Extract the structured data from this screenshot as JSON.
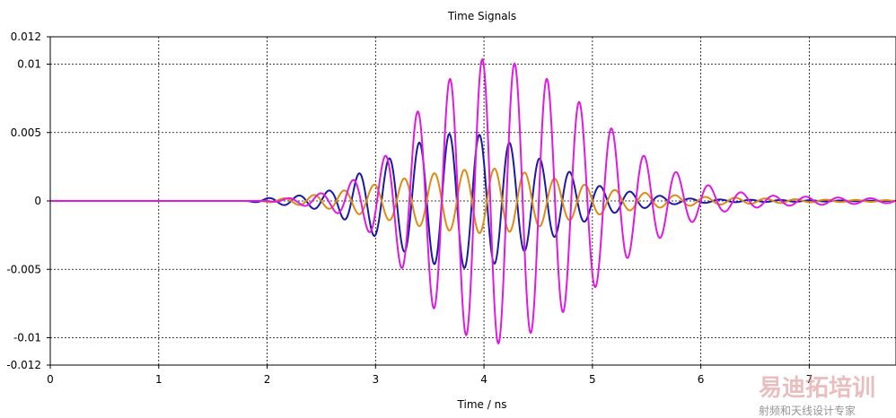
{
  "chart_data": {
    "type": "line",
    "title": "Time Signals",
    "xlabel": "Time / ns",
    "ylabel": "",
    "xlim": [
      0,
      7.8
    ],
    "ylim": [
      -0.012,
      0.012
    ],
    "xticks": [
      0,
      1,
      2,
      3,
      4,
      5,
      6,
      7
    ],
    "xtick_labels": [
      "0",
      "1",
      "2",
      "3",
      "4",
      "5",
      "6",
      "7"
    ],
    "yticks": [
      0.012,
      0.01,
      0.005,
      0,
      -0.005,
      -0.01,
      -0.012
    ],
    "ytick_labels": [
      "0.012",
      "0.01",
      "0.005",
      "0",
      "-0.005",
      "-0.01",
      "-0.012"
    ],
    "grid": true,
    "series": [
      {
        "color": "#1a1aa6",
        "x": [
          0,
          1.8,
          2.0,
          2.3,
          2.6,
          2.82,
          3.1,
          3.38,
          3.65,
          3.92,
          4.2,
          4.48,
          4.75,
          5.0,
          5.25,
          5.5,
          5.8,
          6.2,
          7.0,
          7.8
        ],
        "y": [
          0,
          0,
          0.0002,
          0.0004,
          0.0008,
          0.0019,
          0.003,
          0.0042,
          0.0049,
          0.0049,
          0.0044,
          0.0032,
          0.0023,
          0.0012,
          0.0008,
          0.0005,
          0.0002,
          0.0001,
          5e-05,
          0
        ],
        "env_kind": "sym"
      },
      {
        "color": "#e08a14",
        "x": [
          0,
          1.9,
          2.3,
          2.6,
          3.0,
          3.3,
          3.6,
          3.85,
          4.05,
          4.3,
          4.55,
          4.85,
          5.2,
          5.6,
          6.0,
          6.5,
          7.0,
          7.8
        ],
        "y": [
          0,
          0,
          0.0003,
          0.0006,
          0.0012,
          0.0017,
          0.0021,
          0.0023,
          0.0024,
          0.0022,
          0.0018,
          0.0013,
          0.0008,
          0.0005,
          0.0003,
          0.0002,
          0.0001,
          5e-05
        ],
        "env_kind": "sym"
      },
      {
        "color": "#e01ae0",
        "x": [
          0,
          2.0,
          2.3,
          2.6,
          2.9,
          3.12,
          3.35,
          3.6,
          3.85,
          4.06,
          4.22,
          4.45,
          4.7,
          4.95,
          5.15,
          5.4,
          5.6,
          5.9,
          6.2,
          6.6,
          7.0,
          7.8
        ],
        "y": [
          0,
          0,
          0.0003,
          0.0007,
          0.002,
          0.0035,
          0.0062,
          0.0084,
          0.0099,
          0.0106,
          0.0102,
          0.0096,
          0.0083,
          0.0068,
          0.0055,
          0.0036,
          0.0028,
          0.0016,
          0.0008,
          0.0004,
          0.0003,
          0.00015
        ],
        "env_kind": "sym"
      }
    ]
  },
  "watermark": {
    "brand": "易迪拓培训",
    "tagline": "射频和天线设计专家"
  }
}
